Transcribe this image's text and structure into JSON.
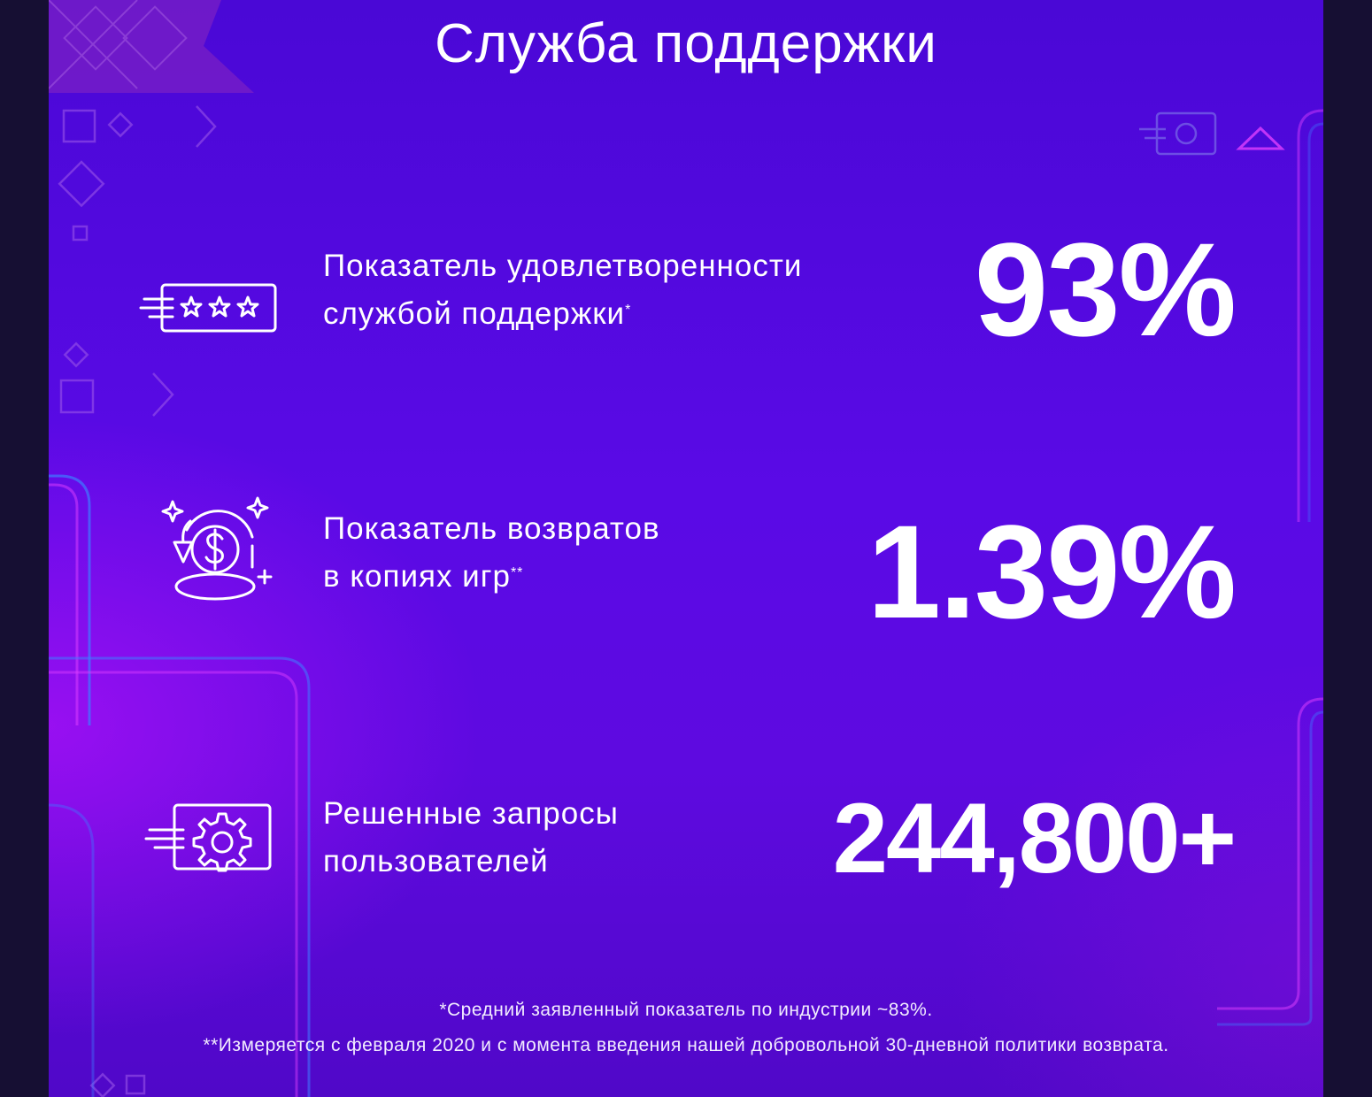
{
  "title": "Служба поддержки",
  "stats": [
    {
      "icon": "rating-stars-icon",
      "label_line1": "Показатель удовлетворенности",
      "label_line2": "службой поддержки",
      "marker": "*",
      "value": "93%"
    },
    {
      "icon": "refund-coin-icon",
      "label_line1": "Показатель возвратов",
      "label_line2": "в копиях игр",
      "marker": "**",
      "value": "1.39%"
    },
    {
      "icon": "settings-gear-icon",
      "label_line1": "Решенные запросы",
      "label_line2": "пользователей",
      "marker": "",
      "value": "244,800+"
    }
  ],
  "footnotes": [
    "*Средний заявленный показатель по индустрии ~83%.",
    "**Измеряется с февраля 2020 и с момента введения нашей добровольной 30-дневной политики возврата."
  ],
  "colors": {
    "page_background": "#160f33",
    "panel_top": "#4a08d6",
    "panel_glow": "#c814ff",
    "accent_pink": "#e040ff",
    "accent_blue": "#3f7bff"
  }
}
